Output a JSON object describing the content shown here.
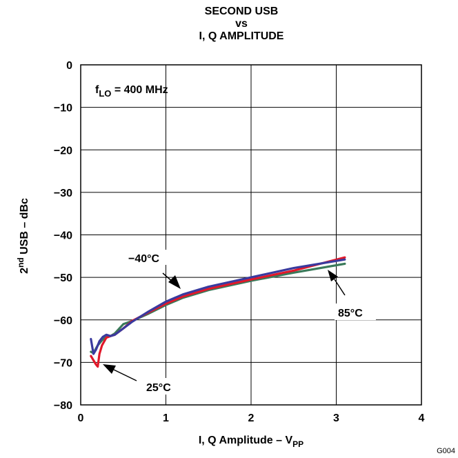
{
  "chart_data": {
    "type": "line",
    "title_lines": [
      "SECOND USB",
      "vs",
      "I, Q AMPLITUDE"
    ],
    "xlabel": "I, Q Amplitude",
    "xlabel_dash": "–",
    "xlabel_unit_main": "V",
    "xlabel_unit_sub": "PP",
    "ylabel_pre": "2",
    "ylabel_sup": "nd",
    "ylabel_post": " USB – dBc",
    "xlim": [
      0,
      4
    ],
    "ylim": [
      -80,
      0
    ],
    "x_ticks": [
      "0",
      "1",
      "2",
      "3",
      "4"
    ],
    "y_ticks": [
      "0",
      "−10",
      "−20",
      "−30",
      "−40",
      "−50",
      "−60",
      "−70",
      "−80"
    ],
    "grid": true,
    "condition": {
      "main": "f",
      "sub": "LO",
      "rest": " = 400 MHz"
    },
    "series": [
      {
        "name": "−40°C",
        "color": "#3a3a9e",
        "x": [
          0.12,
          0.15,
          0.18,
          0.22,
          0.26,
          0.3,
          0.35,
          0.4,
          0.5,
          0.6,
          0.8,
          1.0,
          1.2,
          1.5,
          2.0,
          2.5,
          3.1
        ],
        "y": [
          -64.5,
          -68,
          -67,
          -65,
          -64,
          -63.5,
          -63.8,
          -63.5,
          -62,
          -60.5,
          -58,
          -55.7,
          -54,
          -52.2,
          -50,
          -47.8,
          -45.8
        ]
      },
      {
        "name": "25°C",
        "color": "#e0182a",
        "x": [
          0.12,
          0.15,
          0.18,
          0.2,
          0.22,
          0.25,
          0.3,
          0.35,
          0.4,
          0.5,
          0.6,
          0.8,
          1.0,
          1.2,
          1.5,
          2.0,
          2.5,
          3.1
        ],
        "y": [
          -68.5,
          -69.5,
          -70.5,
          -71,
          -68,
          -66,
          -64.2,
          -63.8,
          -63.5,
          -62,
          -60.3,
          -58.2,
          -56.2,
          -54.5,
          -52.7,
          -50.5,
          -48.4,
          -45.3
        ]
      },
      {
        "name": "85°C",
        "color": "#3a7a5a",
        "x": [
          0.12,
          0.15,
          0.2,
          0.25,
          0.3,
          0.35,
          0.4,
          0.5,
          0.6,
          0.8,
          1.0,
          1.2,
          1.5,
          2.0,
          2.5,
          3.1
        ],
        "y": [
          -67.5,
          -67.8,
          -66,
          -64.8,
          -64,
          -63.8,
          -63.2,
          -61,
          -60.3,
          -58.5,
          -56.5,
          -54.8,
          -53,
          -50.8,
          -48.9,
          -46.8
        ]
      }
    ],
    "annotations": [
      {
        "text": "−40°C",
        "series": "−40°C"
      },
      {
        "text": "25°C",
        "series": "25°C"
      },
      {
        "text": "85°C",
        "series": "85°C"
      }
    ],
    "figure_code": "G004"
  }
}
